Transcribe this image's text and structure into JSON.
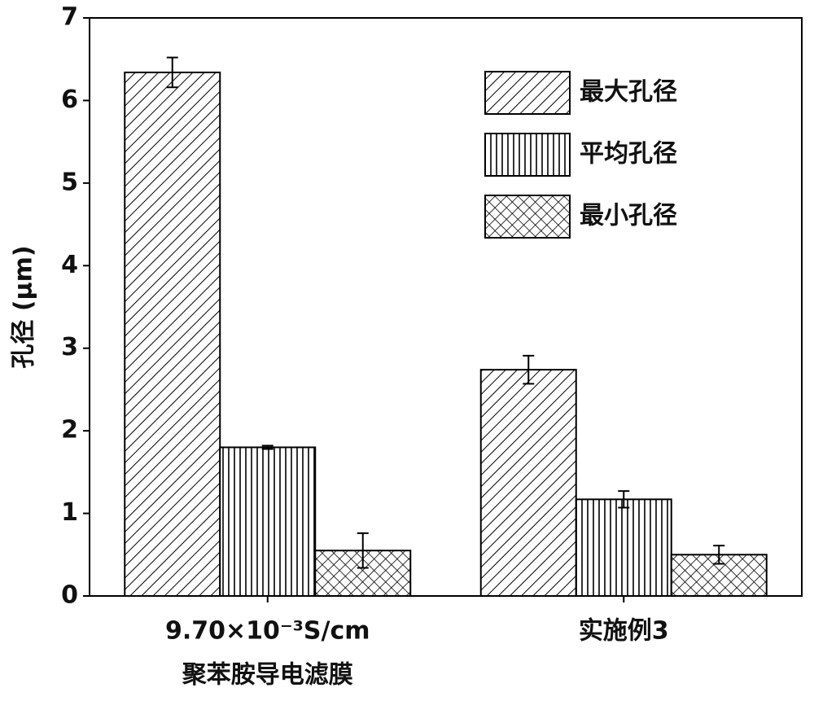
{
  "chart_data": {
    "type": "bar",
    "ylabel": "孔径 (μm)",
    "categories": [
      [
        "9.70×10⁻³S/cm",
        "聚苯胺导电滤膜"
      ],
      [
        "实施例3"
      ]
    ],
    "series": [
      {
        "name": "最大孔径",
        "color": "#000000",
        "hatch": "diagonal",
        "values": [
          6.34,
          2.74
        ],
        "errors": [
          0.18,
          0.17
        ]
      },
      {
        "name": "平均孔径",
        "color": "#000000",
        "hatch": "vertical",
        "values": [
          1.8,
          1.17
        ],
        "errors": [
          0.02,
          0.1
        ]
      },
      {
        "name": "最小孔径",
        "color": "#000000",
        "hatch": "cross",
        "values": [
          0.55,
          0.5
        ],
        "errors": [
          0.21,
          0.11
        ]
      }
    ],
    "ylim": [
      0,
      7
    ],
    "yticks": [
      0,
      1,
      2,
      3,
      4,
      5,
      6,
      7
    ],
    "legend": "upper right"
  }
}
